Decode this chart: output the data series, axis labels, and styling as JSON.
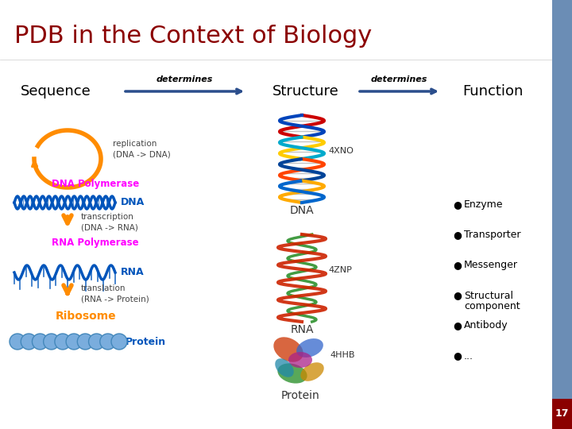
{
  "title": "PDB in the Context of Biology",
  "title_color": "#8B0000",
  "title_fontsize": 22,
  "bg_color": "#FFFFFF",
  "sidebar_color": "#6B8DB5",
  "page_number": "17",
  "page_num_bg": "#8B0000",
  "page_num_color": "#FFFFFF",
  "sequence_label": "Sequence",
  "structure_label": "Structure",
  "function_label": "Function",
  "determines1": "determines",
  "determines2": "determines",
  "arrow_color": "#2B4E8C",
  "dna_polymerase_label": "DNA Polymerase",
  "dna_polymerase_color": "#FF00FF",
  "rna_polymerase_label": "RNA Polymerase",
  "rna_polymerase_color": "#FF00FF",
  "ribosome_label": "Ribosome",
  "ribosome_color": "#FF8C00",
  "dna_label": "DNA",
  "dna_label_color": "#0055BB",
  "rna_label": "RNA",
  "rna_label_color": "#0055BB",
  "protein_label": "Protein",
  "protein_label_color": "#0055BB",
  "replication_text": "replication\n(DNA -> DNA)",
  "transcription_text": "transcription\n(DNA -> RNA)",
  "translation_text": "translation\n(RNA -> Protein)",
  "pdb_dna": "4XNO",
  "pdb_rna": "4ZNP",
  "pdb_protein": "4HHB",
  "bullet_items": [
    "Enzyme",
    "Transporter",
    "Messenger",
    "Structural\ncomponent",
    "Antibody",
    "..."
  ],
  "bullet_color": "#000000",
  "label_color": "#000000",
  "orange_color": "#FF8C00",
  "process_text_color": "#444444"
}
